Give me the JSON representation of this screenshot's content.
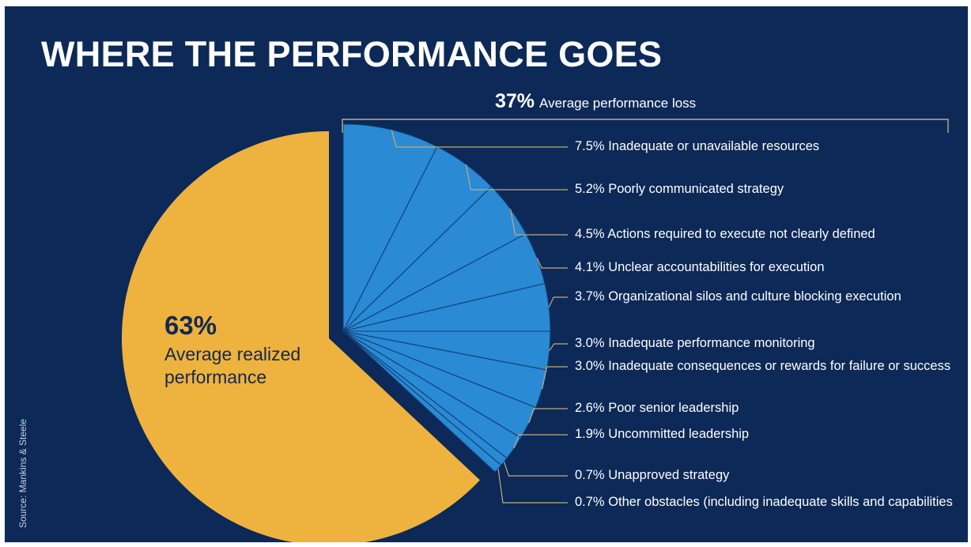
{
  "chart_data": {
    "type": "pie",
    "title": "WHERE THE PERFORMANCE GOES",
    "total_loss": {
      "value": 37,
      "pct_text": "37%",
      "label": "Average performance loss"
    },
    "realized": {
      "value": 63,
      "pct_text": "63%",
      "label": "Average realized performance"
    },
    "source": "Source: Mankins & Steele",
    "loss_slices": [
      {
        "value": 7.5,
        "text": "7.5% Inadequate or unavailable resources"
      },
      {
        "value": 5.2,
        "text": "5.2% Poorly communicated strategy"
      },
      {
        "value": 4.5,
        "text": "4.5% Actions required to execute not clearly defined"
      },
      {
        "value": 4.1,
        "text": "4.1% Unclear accountabilities for execution"
      },
      {
        "value": 3.7,
        "text": "3.7% Organizational silos and culture blocking execution"
      },
      {
        "value": 3.0,
        "text": "3.0% Inadequate performance monitoring"
      },
      {
        "value": 3.0,
        "text": "3.0% Inadequate consequences or rewards for failure or success"
      },
      {
        "value": 2.6,
        "text": "2.6% Poor senior leadership"
      },
      {
        "value": 1.9,
        "text": "1.9% Uncommitted leadership"
      },
      {
        "value": 0.7,
        "text": "0.7% Unapproved strategy"
      },
      {
        "value": 0.7,
        "text": "0.7% Other obstacles (including inadequate skills and capabilities"
      }
    ],
    "colors": {
      "background": "#0c2957",
      "realized": "#eeb23e",
      "loss": "#2a8ad4",
      "loss_divider": "#123f78",
      "leader": "#c2aa7c",
      "text": "#ffffff",
      "realized_text": "#13294d"
    }
  }
}
